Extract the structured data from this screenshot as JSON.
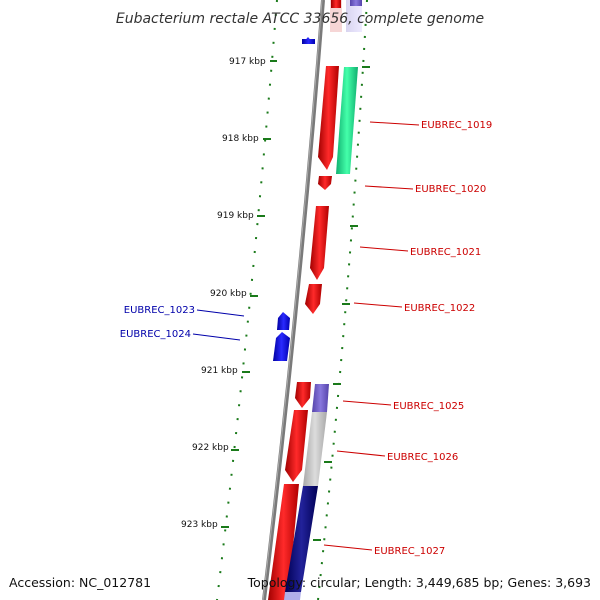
{
  "title": "Eubacterium rectale ATCC 33656, complete genome",
  "accession": "Accession: NC_012781",
  "topology": "Topology: circular; Length: 3,449,685 bp; Genes: 3,693",
  "colors": {
    "backbone": "#7a7a7a",
    "tick": "#1a7a1a",
    "forward_gene": "#ee1111",
    "reverse_gene": "#1111dd",
    "label_forward": "#cc0000",
    "label_reverse": "#0000aa",
    "green_feature": "#22dd88",
    "purple_feature": "#7766cc",
    "grey_feature": "#c0c0c0",
    "navy_feature": "#111177"
  },
  "ticks": [
    {
      "label": "917 kbp"
    },
    {
      "label": "918 kbp"
    },
    {
      "label": "919 kbp"
    },
    {
      "label": "920 kbp"
    },
    {
      "label": "921 kbp"
    },
    {
      "label": "922 kbp"
    },
    {
      "label": "923 kbp"
    }
  ],
  "gene_labels": [
    {
      "text": "EUBREC_1019",
      "strand": "forward"
    },
    {
      "text": "EUBREC_1020",
      "strand": "forward"
    },
    {
      "text": "EUBREC_1021",
      "strand": "forward"
    },
    {
      "text": "EUBREC_1022",
      "strand": "forward"
    },
    {
      "text": "EUBREC_1023",
      "strand": "reverse"
    },
    {
      "text": "EUBREC_1024",
      "strand": "reverse"
    },
    {
      "text": "EUBREC_1025",
      "strand": "forward"
    },
    {
      "text": "EUBREC_1026",
      "strand": "forward"
    },
    {
      "text": "EUBREC_1027",
      "strand": "forward"
    }
  ]
}
